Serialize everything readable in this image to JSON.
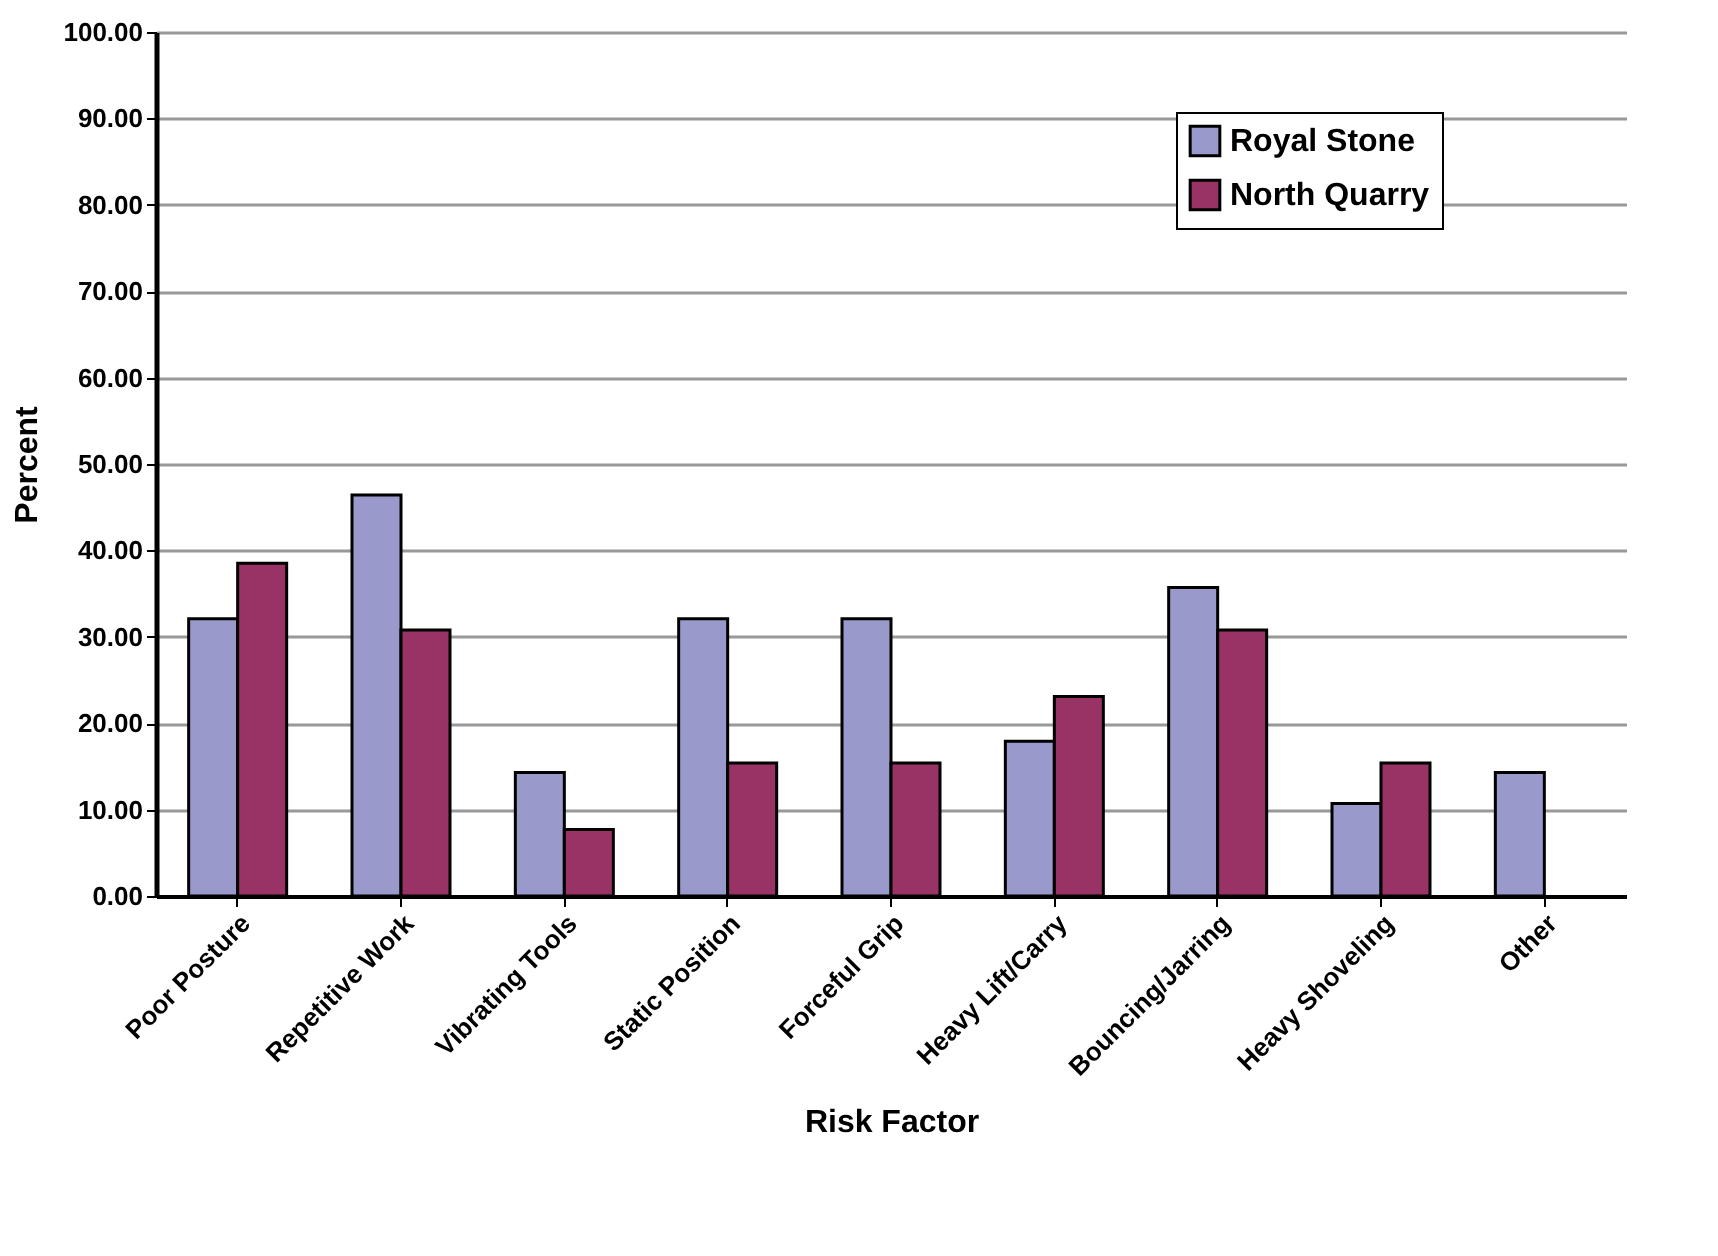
{
  "chart_data": {
    "type": "bar",
    "xlabel": "Risk Factor",
    "ylabel": "Percent",
    "categories": [
      "Poor Posture",
      "Repetitive Work",
      "Vibrating Tools",
      "Static Position",
      "Forceful Grip",
      "Heavy Lift/Carry",
      "Bouncing/Jarring",
      "Heavy Shoveling",
      "Other"
    ],
    "series": [
      {
        "name": "Royal Stone",
        "color": "#9999cc",
        "values": [
          32.1,
          46.4,
          14.3,
          32.1,
          32.1,
          17.9,
          35.7,
          10.7,
          14.3
        ]
      },
      {
        "name": "North Quarry",
        "color": "#993366",
        "values": [
          38.5,
          30.8,
          7.7,
          15.4,
          15.4,
          23.1,
          30.8,
          15.4,
          null
        ]
      }
    ],
    "ylim": [
      0,
      100
    ],
    "yticks": [
      {
        "value": 0,
        "label": "0.00"
      },
      {
        "value": 10,
        "label": "10.00"
      },
      {
        "value": 20,
        "label": "20.00"
      },
      {
        "value": 30,
        "label": "30.00"
      },
      {
        "value": 40,
        "label": "40.00"
      },
      {
        "value": 50,
        "label": "50.00"
      },
      {
        "value": 60,
        "label": "60.00"
      },
      {
        "value": 70,
        "label": "70.00"
      },
      {
        "value": 80,
        "label": "80.00"
      },
      {
        "value": 90,
        "label": "90.00"
      },
      {
        "value": 100,
        "label": "100.00"
      }
    ],
    "grid": "y",
    "legend": "top right"
  }
}
